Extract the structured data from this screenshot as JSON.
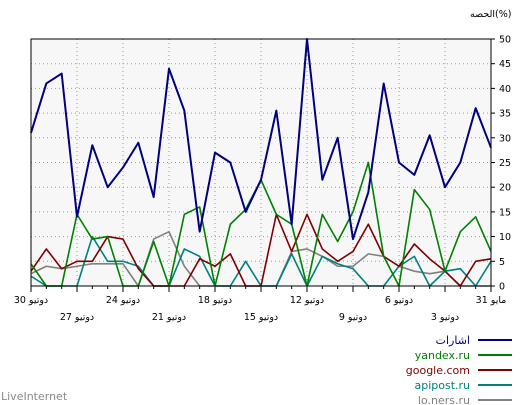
{
  "chart_data": {
    "type": "line",
    "ylabel": "الحصه(%)",
    "ylim": [
      0,
      50
    ],
    "yticks": [
      "0",
      "5",
      "10",
      "15",
      "20",
      "25",
      "30",
      "35",
      "40",
      "45",
      "50"
    ],
    "xticks_row1": [
      "30 دوتيو",
      "24 دوتيو",
      "18 دوتيو",
      "12 دوتيو",
      "6 دوتيو",
      "31 مايو"
    ],
    "xticks_row2": [
      "27 دوتيو",
      "21 دوتيو",
      "15 دوتيو",
      "9 دوتيو",
      "3 دوتيو"
    ],
    "grid": true,
    "x_direction": "right-to-left",
    "x": [
      "30 دوتيو",
      "29",
      "28",
      "27 دوتيو",
      "26",
      "25",
      "24 دوتيو",
      "23",
      "22",
      "21 دوتيو",
      "20",
      "19",
      "18 دوتيو",
      "17",
      "16",
      "15 دوتيو",
      "14",
      "13",
      "12 دوتيو",
      "11",
      "10",
      "9 دوتيو",
      "8",
      "7",
      "6 دوتيو",
      "5",
      "4",
      "3 دوتيو",
      "2",
      "1",
      "31 مايو"
    ],
    "series": [
      {
        "name": "اشارات",
        "color": "#000080",
        "values": [
          31,
          41,
          43,
          14,
          28.5,
          20,
          24,
          29,
          18,
          44,
          35.5,
          11,
          27,
          25,
          15,
          21.5,
          35.5,
          12.5,
          50,
          21.5,
          30,
          9.5,
          19,
          41,
          25,
          22.5,
          30.5,
          20,
          25,
          36,
          28
        ]
      },
      {
        "name": "yandex.ru",
        "color": "#008000",
        "values": [
          4.5,
          0,
          0,
          14.5,
          9.5,
          10,
          0,
          0,
          9,
          0,
          14.5,
          16,
          0,
          12.5,
          15.5,
          21.5,
          14.5,
          12.5,
          0,
          14.5,
          9,
          15,
          25,
          6,
          0,
          19.5,
          15.5,
          3,
          11,
          14,
          7
        ]
      },
      {
        "name": "google.com",
        "color": "#800000",
        "values": [
          3,
          7.5,
          3.5,
          5,
          5,
          10,
          9.5,
          3.5,
          0,
          0,
          0,
          5.5,
          4,
          6.5,
          0,
          0,
          14.5,
          7,
          14.5,
          7.5,
          5,
          7,
          12.5,
          6,
          4,
          8.5,
          5.5,
          3,
          0,
          5,
          5.5
        ]
      },
      {
        "name": "apipost.ru",
        "color": "#008080",
        "values": [
          2,
          0,
          0,
          0,
          10,
          5,
          5,
          4,
          0,
          0,
          7.5,
          6,
          0,
          0,
          5,
          0,
          0,
          6.5,
          0,
          6,
          4.5,
          3.5,
          0,
          0,
          4,
          6,
          0,
          3,
          3.5,
          0,
          5
        ]
      },
      {
        "name": "lo.ners.ru",
        "color": "#808080",
        "values": [
          2.5,
          4,
          3.5,
          4,
          4.5,
          4.5,
          4.5,
          0,
          9.5,
          11,
          4,
          0,
          0,
          0,
          0,
          0,
          0,
          7,
          7.5,
          6,
          4,
          4,
          6.5,
          6,
          4,
          3,
          2.5,
          3,
          0,
          0,
          0
        ]
      }
    ]
  },
  "watermark": "LiveInternet"
}
